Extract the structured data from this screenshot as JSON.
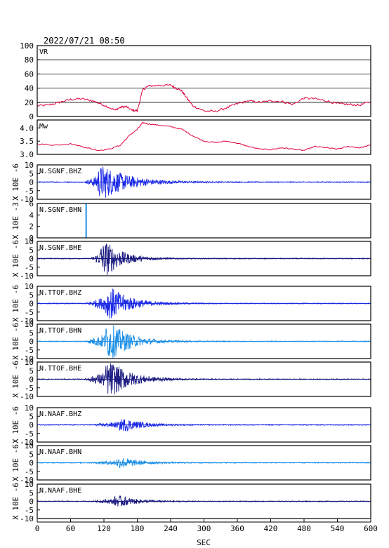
{
  "header": {
    "timestamp": "2022/07/21 08:50"
  },
  "x_axis": {
    "label": "SEC",
    "range": [
      0,
      600
    ],
    "ticks": [
      0,
      60,
      120,
      180,
      240,
      300,
      360,
      420,
      480,
      540,
      600
    ]
  },
  "colors": {
    "frame": "#000000",
    "vr_mw_line": "#e0003c",
    "dark_blue": "#1a1a80",
    "blue": "#1c2ae6",
    "light_blue": "#1e90e6",
    "grid": "#000000"
  },
  "chart_data": [
    {
      "type": "line",
      "label": "VR",
      "ylim": [
        0,
        100
      ],
      "yticks": [
        0,
        20,
        40,
        60,
        80,
        100
      ],
      "grid": true,
      "color": "#e0003c",
      "x": [
        0,
        20,
        40,
        60,
        80,
        100,
        120,
        140,
        150,
        160,
        170,
        180,
        190,
        200,
        220,
        240,
        250,
        260,
        270,
        280,
        300,
        320,
        340,
        360,
        380,
        400,
        420,
        440,
        460,
        480,
        500,
        520,
        540,
        560,
        580,
        600
      ],
      "values": [
        15,
        16,
        20,
        24,
        25,
        22,
        16,
        9,
        13,
        14,
        9,
        8,
        38,
        43,
        44,
        44,
        40,
        36,
        25,
        15,
        8,
        7,
        12,
        18,
        22,
        20,
        22,
        21,
        17,
        26,
        25,
        22,
        18,
        17,
        16,
        21
      ]
    },
    {
      "type": "line",
      "label": "Mw",
      "ylim": [
        3.0,
        4.3
      ],
      "yticks": [
        3.0,
        3.5,
        4.0
      ],
      "ytick_labels": [
        "3.0",
        "3.5",
        "4.0"
      ],
      "grid": false,
      "color": "#e0003c",
      "x": [
        0,
        30,
        60,
        90,
        110,
        130,
        150,
        165,
        180,
        190,
        200,
        220,
        240,
        260,
        280,
        300,
        320,
        340,
        360,
        380,
        400,
        420,
        440,
        460,
        480,
        500,
        520,
        540,
        560,
        580,
        600
      ],
      "values": [
        3.4,
        3.35,
        3.4,
        3.25,
        3.15,
        3.2,
        3.35,
        3.7,
        3.95,
        4.2,
        4.15,
        4.1,
        4.05,
        3.95,
        3.7,
        3.5,
        3.45,
        3.5,
        3.42,
        3.3,
        3.2,
        3.18,
        3.25,
        3.2,
        3.15,
        3.3,
        3.25,
        3.2,
        3.3,
        3.25,
        3.35
      ]
    },
    {
      "type": "line",
      "label": "N.SGNF.BHZ",
      "ylabel": "X 10E -6",
      "ylim": [
        -10,
        10
      ],
      "yticks": [
        -10,
        -5,
        0,
        5,
        10
      ],
      "color": "#1c2ae6",
      "onset": 85,
      "peak_time": 120,
      "peak_amp": 9.8,
      "decay": 45,
      "dense": true
    },
    {
      "type": "line",
      "label": "N.SGNF.BHN",
      "ylabel": "X 10E -3",
      "ylim": [
        0,
        6
      ],
      "yticks": [
        0,
        2,
        4,
        6
      ],
      "color": "#1e90e6",
      "spike_time": 88,
      "spike_range": [
        0,
        6
      ]
    },
    {
      "type": "line",
      "label": "N.SGNF.BHE",
      "ylabel": "X 10E -6",
      "ylim": [
        -10,
        10
      ],
      "yticks": [
        -10,
        -5,
        0,
        5,
        10
      ],
      "color": "#1a1a80",
      "onset": 95,
      "peak_time": 125,
      "peak_amp": 10,
      "decay": 30
    },
    {
      "type": "line",
      "label": "N.TTOF.BHZ",
      "ylabel": "X 10E -6",
      "ylim": [
        -10,
        10
      ],
      "yticks": [
        -10,
        -5,
        0,
        5,
        10
      ],
      "color": "#1c2ae6",
      "onset": 85,
      "peak_time": 135,
      "peak_amp": 9,
      "decay": 35
    },
    {
      "type": "line",
      "label": "N.TTOF.BHN",
      "ylabel": "X 10E -6",
      "ylim": [
        -10,
        10
      ],
      "yticks": [
        -10,
        -5,
        0,
        5,
        10
      ],
      "color": "#1e90e6",
      "onset": 85,
      "peak_time": 135,
      "peak_amp": 10,
      "decay": 35
    },
    {
      "type": "line",
      "label": "N.TTOF.BHE",
      "ylabel": "X 10E -6",
      "ylim": [
        -10,
        10
      ],
      "yticks": [
        -10,
        -5,
        0,
        5,
        10
      ],
      "color": "#1a1a80",
      "onset": 85,
      "peak_time": 135,
      "peak_amp": 10,
      "decay": 35
    },
    {
      "type": "line",
      "label": "N.NAAF.BHZ",
      "ylabel": "X 10E -6",
      "ylim": [
        -10,
        10
      ],
      "yticks": [
        -10,
        -5,
        0,
        5,
        10
      ],
      "color": "#1c2ae6",
      "onset": 95,
      "peak_time": 160,
      "peak_amp": 3.5,
      "decay": 30
    },
    {
      "type": "line",
      "label": "N.NAAF.BHN",
      "ylabel": "X 10E -6",
      "ylim": [
        -10,
        10
      ],
      "yticks": [
        -10,
        -5,
        0,
        5,
        10
      ],
      "color": "#1e90e6",
      "onset": 95,
      "peak_time": 155,
      "peak_amp": 3,
      "decay": 30
    },
    {
      "type": "line",
      "label": "N.NAAF.BHE",
      "ylabel": "X 10E -6",
      "ylim": [
        -10,
        10
      ],
      "yticks": [
        -10,
        -5,
        0,
        5,
        10
      ],
      "color": "#1a1a80",
      "onset": 95,
      "peak_time": 150,
      "peak_amp": 3,
      "decay": 30
    }
  ]
}
